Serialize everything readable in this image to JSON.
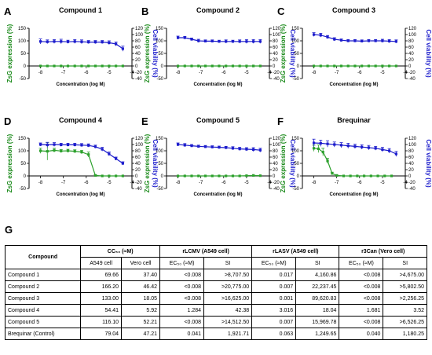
{
  "colors": {
    "zsg": "#2ca02c",
    "viability": "#1c1ccc",
    "axis_left": "#1a8a1a",
    "axis_right": "#1c1ccc"
  },
  "chart_data": [
    {
      "type": "line",
      "panel": "A",
      "title": "Compound 1",
      "xlabel": "Concentration (log M)",
      "ylabel_left": "ZsG expression (%)",
      "ylabel_right": "Cell viability (%)",
      "xlim": [
        -8.5,
        -4
      ],
      "ylim_left": [
        -50,
        150
      ],
      "ylim_right": [
        -40,
        120
      ],
      "x_ticks": [
        -8,
        -7,
        -6,
        -5,
        -4
      ],
      "y_ticks_left": [
        -50,
        0,
        50,
        100,
        150
      ],
      "y_ticks_right": [
        -40,
        -20,
        0,
        20,
        40,
        60,
        80,
        100,
        120
      ],
      "series": [
        {
          "axis": "left",
          "color": "zsg",
          "x": [
            -8,
            -7.7,
            -7.4,
            -7.1,
            -6.8,
            -6.5,
            -6.2,
            -5.9,
            -5.6,
            -5.3,
            -5,
            -4.7,
            -4.4
          ],
          "y": [
            0,
            0,
            0,
            0,
            0,
            0,
            0,
            0,
            0,
            0,
            0,
            0,
            0
          ]
        },
        {
          "axis": "right",
          "color": "viability",
          "x": [
            -8,
            -7.7,
            -7.4,
            -7.1,
            -6.8,
            -6.5,
            -6.2,
            -5.9,
            -5.6,
            -5.3,
            -5,
            -4.7,
            -4.4
          ],
          "y": [
            78,
            77,
            78,
            78,
            77,
            78,
            77,
            76,
            76,
            76,
            74,
            70,
            55
          ],
          "err": [
            8,
            6,
            6,
            7,
            5,
            6,
            6,
            5,
            5,
            5,
            6,
            6,
            8
          ]
        }
      ]
    },
    {
      "type": "line",
      "panel": "B",
      "title": "Compound 2",
      "xlabel": "Concentration (log M)",
      "ylabel_left": "ZsG expression (%)",
      "ylabel_right": "Cell viability (%)",
      "xlim": [
        -8.5,
        -4
      ],
      "ylim_left": [
        -50,
        150
      ],
      "ylim_right": [
        -40,
        120
      ],
      "x_ticks": [
        -8,
        -7,
        -6,
        -5,
        -4
      ],
      "y_ticks_left": [
        -50,
        0,
        50,
        100,
        150
      ],
      "y_ticks_right": [
        -40,
        -20,
        0,
        20,
        40,
        60,
        80,
        100,
        120
      ],
      "series": [
        {
          "axis": "left",
          "color": "zsg",
          "x": [
            -8,
            -7.7,
            -7.4,
            -7.1,
            -6.8,
            -6.5,
            -6.2,
            -5.9,
            -5.6,
            -5.3,
            -5,
            -4.7,
            -4.4
          ],
          "y": [
            0,
            0,
            0,
            0,
            0,
            0,
            0,
            0,
            0,
            0,
            0,
            0,
            0
          ]
        },
        {
          "axis": "right",
          "color": "viability",
          "x": [
            -8,
            -7.7,
            -7.4,
            -7.1,
            -6.8,
            -6.5,
            -6.2,
            -5.9,
            -5.6,
            -5.3,
            -5,
            -4.7,
            -4.4
          ],
          "y": [
            90,
            90,
            85,
            80,
            79,
            79,
            78,
            78,
            78,
            78,
            78,
            78,
            78
          ],
          "err": [
            5,
            4,
            4,
            5,
            4,
            4,
            4,
            5,
            4,
            5,
            6,
            6,
            6
          ]
        }
      ]
    },
    {
      "type": "line",
      "panel": "C",
      "title": "Compound 3",
      "xlabel": "Concentration (log M)",
      "ylabel_left": "ZsG expression (%)",
      "ylabel_right": "Cell viability (%)",
      "xlim": [
        -8.5,
        -4
      ],
      "ylim_left": [
        -50,
        150
      ],
      "ylim_right": [
        -40,
        120
      ],
      "x_ticks": [
        -8,
        -7,
        -6,
        -5,
        -4
      ],
      "y_ticks_left": [
        -50,
        0,
        50,
        100,
        150
      ],
      "y_ticks_right": [
        -40,
        -20,
        0,
        20,
        40,
        60,
        80,
        100,
        120
      ],
      "series": [
        {
          "axis": "left",
          "color": "zsg",
          "x": [
            -8,
            -7.7,
            -7.4,
            -7.1,
            -6.8,
            -6.5,
            -6.2,
            -5.9,
            -5.6,
            -5.3,
            -5,
            -4.7,
            -4.4
          ],
          "y": [
            0,
            0,
            0,
            0,
            0,
            0,
            0,
            0,
            0,
            0,
            0,
            0,
            0
          ]
        },
        {
          "axis": "right",
          "color": "viability",
          "x": [
            -8,
            -7.7,
            -7.4,
            -7.1,
            -6.8,
            -6.5,
            -6.2,
            -5.9,
            -5.6,
            -5.3,
            -5,
            -4.7,
            -4.4
          ],
          "y": [
            100,
            98,
            92,
            85,
            82,
            80,
            80,
            79,
            80,
            80,
            80,
            79,
            78
          ],
          "err": [
            6,
            6,
            5,
            5,
            4,
            4,
            4,
            4,
            4,
            4,
            5,
            5,
            5
          ]
        }
      ]
    },
    {
      "type": "line",
      "panel": "D",
      "title": "Compound 4",
      "xlabel": "Concentration (log M)",
      "ylabel_left": "ZsG expression (%)",
      "ylabel_right": "Cell viability (%)",
      "xlim": [
        -8.5,
        -4
      ],
      "ylim_left": [
        -50,
        150
      ],
      "ylim_right": [
        -40,
        120
      ],
      "x_ticks": [
        -8,
        -7,
        -6,
        -5,
        -4
      ],
      "y_ticks_left": [
        -50,
        0,
        50,
        100,
        150
      ],
      "y_ticks_right": [
        -40,
        -20,
        0,
        20,
        40,
        60,
        80,
        100,
        120
      ],
      "series": [
        {
          "axis": "left",
          "color": "zsg",
          "x": [
            -8,
            -7.7,
            -7.4,
            -7.1,
            -6.8,
            -6.5,
            -6.2,
            -5.9,
            -5.6,
            -5.3,
            -5,
            -4.7,
            -4.4
          ],
          "y": [
            100,
            98,
            102,
            99,
            100,
            98,
            95,
            85,
            2,
            0,
            0,
            0,
            0
          ],
          "err": [
            10,
            35,
            8,
            6,
            6,
            6,
            7,
            10,
            3,
            0,
            0,
            0,
            0
          ]
        },
        {
          "axis": "right",
          "color": "viability",
          "x": [
            -8,
            -7.7,
            -7.4,
            -7.1,
            -6.8,
            -6.5,
            -6.2,
            -5.9,
            -5.6,
            -5.3,
            -5,
            -4.7,
            -4.4
          ],
          "y": [
            100,
            99,
            100,
            99,
            99,
            99,
            98,
            97,
            93,
            85,
            70,
            55,
            40
          ],
          "err": [
            5,
            8,
            6,
            5,
            5,
            5,
            5,
            5,
            5,
            6,
            6,
            5,
            5
          ]
        }
      ]
    },
    {
      "type": "line",
      "panel": "E",
      "title": "Compound 5",
      "xlabel": "Concentration (log M)",
      "ylabel_left": "ZsG expression (%)",
      "ylabel_right": "Cell viability (%)",
      "xlim": [
        -8.5,
        -4
      ],
      "ylim_left": [
        -50,
        150
      ],
      "ylim_right": [
        -40,
        120
      ],
      "x_ticks": [
        -8,
        -7,
        -6,
        -5,
        -4
      ],
      "y_ticks_left": [
        -50,
        0,
        50,
        100,
        150
      ],
      "y_ticks_right": [
        -40,
        -20,
        0,
        20,
        40,
        60,
        80,
        100,
        120
      ],
      "series": [
        {
          "axis": "left",
          "color": "zsg",
          "x": [
            -8,
            -7.7,
            -7.4,
            -7.1,
            -6.8,
            -6.5,
            -6.2,
            -5.9,
            -5.6,
            -5.3,
            -5,
            -4.7,
            -4.4
          ],
          "y": [
            0,
            0,
            0,
            0,
            0,
            0,
            0,
            0,
            0,
            0,
            1,
            2,
            1
          ]
        },
        {
          "axis": "right",
          "color": "viability",
          "x": [
            -8,
            -7.7,
            -7.4,
            -7.1,
            -6.8,
            -6.5,
            -6.2,
            -5.9,
            -5.6,
            -5.3,
            -5,
            -4.7,
            -4.4
          ],
          "y": [
            100,
            98,
            96,
            94,
            93,
            92,
            91,
            90,
            88,
            86,
            85,
            84,
            82
          ],
          "err": [
            5,
            5,
            4,
            4,
            4,
            4,
            4,
            4,
            5,
            5,
            5,
            6,
            6
          ]
        }
      ]
    },
    {
      "type": "line",
      "panel": "F",
      "title": "Brequinar",
      "xlabel": "Concentration (log M)",
      "ylabel_left": "ZsG expression (%)",
      "ylabel_right": "Cell viability (%)",
      "xlim": [
        -8.5,
        -4
      ],
      "ylim_left": [
        -50,
        150
      ],
      "ylim_right": [
        -40,
        120
      ],
      "x_ticks": [
        -8,
        -7,
        -6,
        -5,
        -4
      ],
      "y_ticks_left": [
        -50,
        0,
        50,
        100,
        150
      ],
      "y_ticks_right": [
        -40,
        -20,
        0,
        20,
        40,
        60,
        80,
        100,
        120
      ],
      "series": [
        {
          "axis": "left",
          "color": "zsg",
          "x": [
            -8,
            -7.8,
            -7.6,
            -7.4,
            -7.2,
            -7,
            -6.7,
            -6.4,
            -6.1,
            -5.8,
            -5.5,
            -5.2,
            -4.9,
            -4.6
          ],
          "y": [
            110,
            108,
            95,
            60,
            10,
            2,
            0,
            0,
            0,
            0,
            0,
            0,
            0,
            0
          ],
          "err": [
            12,
            15,
            15,
            10,
            5,
            2,
            0,
            0,
            0,
            0,
            0,
            0,
            0,
            0
          ]
        },
        {
          "axis": "right",
          "color": "viability",
          "x": [
            -8,
            -7.7,
            -7.4,
            -7.1,
            -6.8,
            -6.5,
            -6.2,
            -5.9,
            -5.6,
            -5.3,
            -5,
            -4.7,
            -4.4
          ],
          "y": [
            105,
            104,
            102,
            100,
            98,
            96,
            94,
            92,
            90,
            88,
            84,
            80,
            70
          ],
          "err": [
            12,
            10,
            10,
            8,
            8,
            8,
            7,
            7,
            7,
            6,
            7,
            7,
            8
          ]
        }
      ]
    }
  ],
  "table": {
    "panel": "G",
    "compound_header": "Compound",
    "groups": [
      "CC₅₀ (≈M)",
      "rLCMV (A549 cell)",
      "rLASV (A549 cell)",
      "r3Can (Vero cell)"
    ],
    "subheaders": [
      "A549 cell",
      "Vero cell",
      "EC₅₀ (≈M)",
      "SI",
      "EC₅₀ (≈M)",
      "SI",
      "EC₅₀ (≈M)",
      "SI"
    ],
    "rows": [
      [
        "Compound 1",
        "69.66",
        "37.40",
        "<0.008",
        ">8,707.50",
        "0.017",
        "4,160.86",
        "<0.008",
        ">4,675.00"
      ],
      [
        "Compound 2",
        "166.20",
        "46.42",
        "<0.008",
        ">20,775.00",
        "0.007",
        "22,237.45",
        "<0.008",
        ">5,802.50"
      ],
      [
        "Compound 3",
        "133.00",
        "18.05",
        "<0.008",
        ">16,625.00",
        "0.001",
        "89,620.83",
        "<0.008",
        ">2,256.25"
      ],
      [
        "Compound 4",
        "54.41",
        "5.92",
        "1.284",
        "42.38",
        "3.016",
        "18.04",
        "1.681",
        "3.52"
      ],
      [
        "Compound 5",
        "116.10",
        "52.21",
        "<0.008",
        ">14,512.50",
        "0.007",
        "15,969.78",
        "<0.008",
        ">6,526.25"
      ],
      [
        "Brequinar (Control)",
        "79.04",
        "47.21",
        "0.041",
        "1,921.71",
        "0.063",
        "1,249.65",
        "0.040",
        "1,180.25"
      ]
    ]
  }
}
